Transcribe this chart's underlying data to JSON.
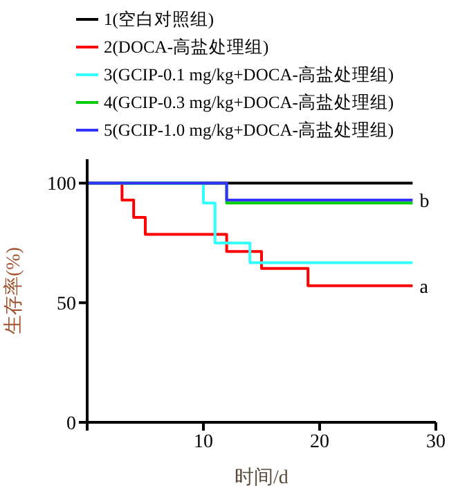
{
  "chart_data": {
    "type": "step",
    "xlabel": "时间/d",
    "ylabel": "生存率(%)",
    "xlim": [
      0,
      30
    ],
    "xticks": [
      {
        "value": 0,
        "label": null
      },
      10,
      20,
      30
    ],
    "ylim": [
      0,
      110
    ],
    "yticks": [
      0,
      50,
      100
    ],
    "grid": false,
    "legend": "top left",
    "marker": "none",
    "line_style": "solid",
    "annotations": [
      {
        "text": "a",
        "x": 28,
        "y": 57.1
      },
      {
        "text": "b",
        "x": 28,
        "y": 92.9
      }
    ],
    "series": [
      {
        "name": "1(空白对照组)",
        "color": "#000000",
        "x": [
          0,
          28
        ],
        "values": [
          100,
          100
        ]
      },
      {
        "name": "2(DOCA-高盐处理组)",
        "color": "#ff0000",
        "x": [
          0,
          3,
          4,
          5,
          12,
          15,
          19,
          28
        ],
        "values": [
          100,
          92.9,
          85.7,
          78.6,
          71.4,
          64.3,
          57.1,
          57.1
        ]
      },
      {
        "name": "3(GCIP-0.1 mg/kg+DOCA-高盐处理组)",
        "color": "#33ffff",
        "x": [
          0,
          10,
          11,
          14,
          28
        ],
        "values": [
          100,
          91.7,
          75,
          66.7,
          66.7
        ]
      },
      {
        "name": "4(GCIP-0.3 mg/kg+DOCA-高盐处理组)",
        "color": "#00cc00",
        "x": [
          0,
          12,
          28
        ],
        "values": [
          100,
          91.7,
          91.7
        ]
      },
      {
        "name": "5(GCIP-1.0 mg/kg+DOCA-高盐处理组)",
        "color": "#3333ff",
        "x": [
          0,
          12,
          28
        ],
        "values": [
          100,
          92.9,
          92.9
        ]
      }
    ]
  }
}
